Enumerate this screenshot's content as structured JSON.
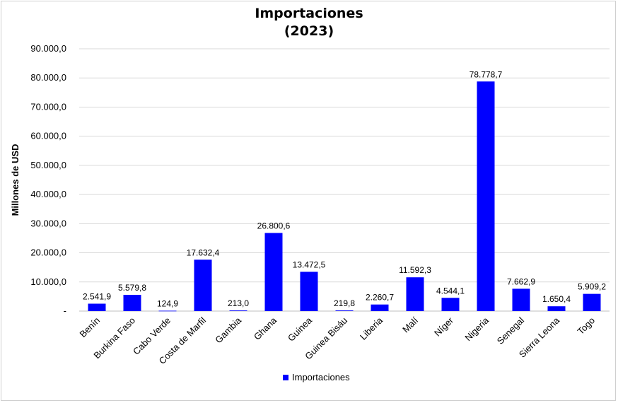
{
  "chart_data": {
    "type": "bar",
    "title": "Importaciones",
    "subtitle": "(2023)",
    "ylabel": "Millones de USD",
    "xlabel": "",
    "ylim": [
      0,
      90000
    ],
    "yticks": [
      0,
      10000,
      20000,
      30000,
      40000,
      50000,
      60000,
      70000,
      80000,
      90000
    ],
    "ytick_labels": [
      "-",
      "10.000,0",
      "20.000,0",
      "30.000,0",
      "40.000,0",
      "50.000,0",
      "60.000,0",
      "70.000,0",
      "80.000,0",
      "90.000,0"
    ],
    "grid": true,
    "legend_position": "bottom",
    "bar_color": "#0000ff",
    "categories": [
      "Benín",
      "Burkina Faso",
      "Cabo Verde",
      "Costa de Marfil",
      "Gambia",
      "Ghana",
      "Guinea",
      "Guinea Bisáu",
      "Liberia",
      "Malí",
      "Níger",
      "Nigeria",
      "Senegal",
      "Sierra Leona",
      "Togo"
    ],
    "series": [
      {
        "name": "Importaciones",
        "values": [
          2541.9,
          5579.8,
          124.9,
          17632.4,
          213.0,
          26800.6,
          13472.5,
          219.8,
          2260.7,
          11592.3,
          4544.1,
          78778.7,
          7662.9,
          1650.4,
          5909.2
        ],
        "labels": [
          "2.541,9",
          "5.579,8",
          "124,9",
          "17.632,4",
          "213,0",
          "26.800,6",
          "13.472,5",
          "219,8",
          "2.260,7",
          "11.592,3",
          "4.544,1",
          "78.778,7",
          "7.662,9",
          "1.650,4",
          "5.909,2"
        ]
      }
    ]
  }
}
